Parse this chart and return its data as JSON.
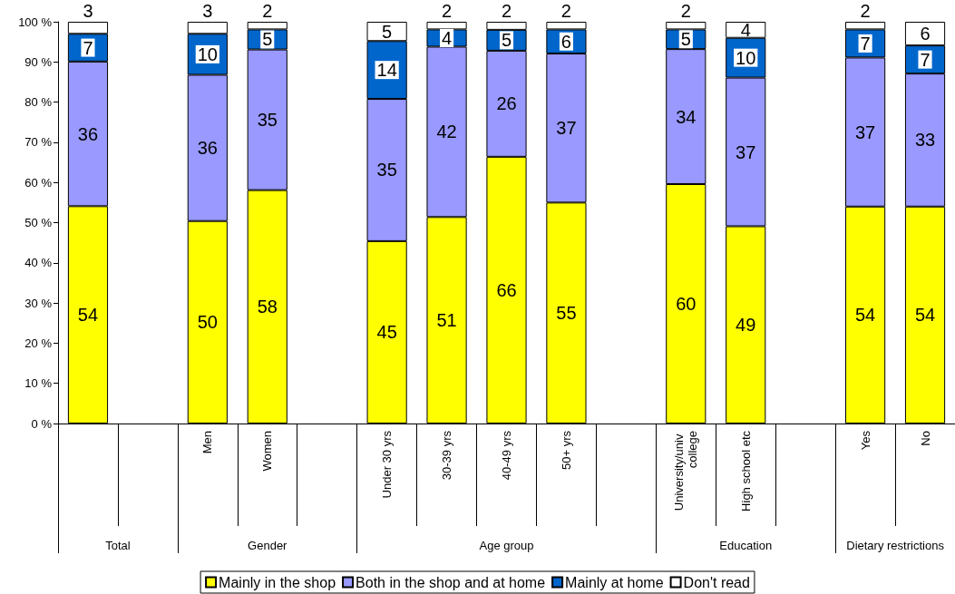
{
  "chart_data": {
    "type": "bar",
    "stacked": true,
    "categories": [
      null,
      null,
      "Men",
      "Women",
      null,
      "Under 30 yrs",
      "30-39 yrs",
      "40-49 yrs",
      "50+ yrs",
      null,
      "University/univ college",
      "High school etc",
      null,
      "Yes",
      "No"
    ],
    "series": [
      {
        "name": "Mainly in the shop",
        "color": "#ffff00",
        "values": [
          54.1,
          null,
          50.4,
          58.1,
          null,
          45.4,
          51.4,
          66.4,
          55.0,
          null,
          59.6,
          49.1,
          null,
          54.0,
          54.0
        ],
        "value_labels": [
          "54",
          null,
          "50",
          "58",
          null,
          "45",
          "51",
          "66",
          "55",
          null,
          "60",
          "49",
          null,
          "54",
          "54"
        ]
      },
      {
        "name": "Both in the shop and at home",
        "color": "#9999ff",
        "values": [
          36.0,
          null,
          36.4,
          35.0,
          null,
          35.4,
          42.4,
          26.4,
          37.1,
          null,
          33.6,
          37.0,
          null,
          37.1,
          33.1
        ],
        "value_labels": [
          "36",
          null,
          "36",
          "35",
          null,
          "35",
          "42",
          "26",
          "37",
          null,
          "34",
          "37",
          null,
          "37",
          "33"
        ]
      },
      {
        "name": "Mainly at home",
        "color": "#0066cc",
        "values": [
          6.9,
          null,
          10.2,
          5.0,
          null,
          14.4,
          4.3,
          5.2,
          6.0,
          null,
          4.9,
          9.9,
          null,
          7.0,
          7.0
        ],
        "value_labels": [
          "7",
          null,
          "10",
          "5",
          null,
          "14",
          "4",
          "5",
          "6",
          null,
          "5",
          "10",
          null,
          "7",
          "7"
        ]
      },
      {
        "name": "Don't read",
        "color": "#ffffff",
        "values": [
          3.0,
          null,
          3.0,
          1.9,
          null,
          4.8,
          1.9,
          2.0,
          1.9,
          null,
          1.9,
          4.0,
          null,
          1.9,
          5.9
        ],
        "value_labels": [
          "3",
          null,
          "3",
          "2",
          null,
          "5",
          "2",
          "2",
          "2",
          null,
          "2",
          "4",
          null,
          "2",
          "6"
        ]
      }
    ],
    "ylim": [
      0,
      100
    ],
    "yticks": [
      {
        "value": 0,
        "label": "0 %"
      },
      {
        "value": 10,
        "label": "10 %"
      },
      {
        "value": 20,
        "label": "20 %"
      },
      {
        "value": 30,
        "label": "30 %"
      },
      {
        "value": 40,
        "label": "40 %"
      },
      {
        "value": 50,
        "label": "50 %"
      },
      {
        "value": 60,
        "label": "60 %"
      },
      {
        "value": 70,
        "label": "70 %"
      },
      {
        "value": 80,
        "label": "80 %"
      },
      {
        "value": 90,
        "label": "90 %"
      },
      {
        "value": 100,
        "label": "100 %"
      }
    ],
    "annotations": [
      "Total",
      "Gender",
      "Age group",
      "Education",
      "Dietary restrictions"
    ],
    "legend": "bottom"
  }
}
